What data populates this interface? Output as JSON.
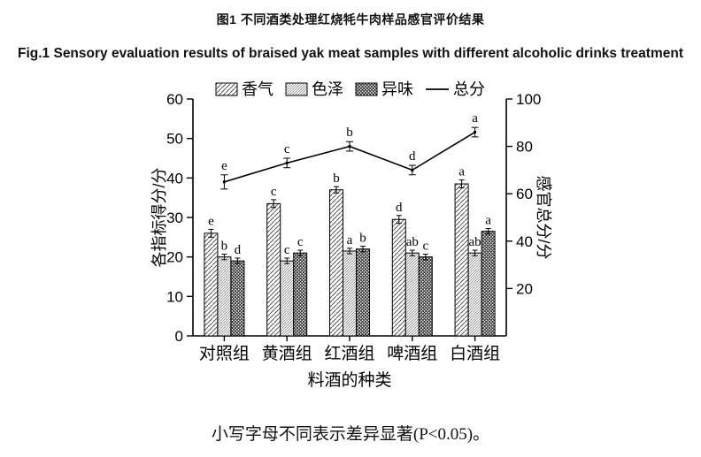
{
  "title_cn": "图1 不同酒类处理红烧牦牛肉样品感官评价结果",
  "title_en": "Fig.1 Sensory evaluation results of braised yak meat samples with different alcoholic drinks treatment",
  "footer_note": "小写字母不同表示差异显著(P<0.05)。",
  "chart_data": {
    "type": "bar",
    "title": "",
    "categories": [
      "对照组",
      "黄酒组",
      "红酒组",
      "啤酒组",
      "白酒组"
    ],
    "xlabel": "料酒的种类",
    "ylabel_left": "各指标得分/分",
    "ylabel_right": "感官总分/分",
    "ylim_left": [
      0,
      60
    ],
    "yticks_left": [
      0,
      10,
      20,
      30,
      40,
      50,
      60
    ],
    "ylim_right": [
      0,
      100
    ],
    "yticks_right": [
      20,
      40,
      60,
      80,
      100
    ],
    "grid": false,
    "legend_position": "top",
    "series": [
      {
        "name": "香气",
        "type": "bar",
        "pattern": "diag-wide",
        "values": [
          26,
          33.5,
          37,
          29.5,
          38.5
        ],
        "errors": [
          1,
          1,
          0.8,
          1,
          1
        ],
        "letters": [
          "e",
          "c",
          "b",
          "d",
          "a"
        ]
      },
      {
        "name": "色泽",
        "type": "bar",
        "pattern": "diag-fine",
        "values": [
          20,
          19,
          21.5,
          21,
          21
        ],
        "errors": [
          0.7,
          0.7,
          0.7,
          0.7,
          0.7
        ],
        "letters": [
          "b",
          "c",
          "a",
          "ab",
          "ab"
        ]
      },
      {
        "name": "异味",
        "type": "bar",
        "pattern": "dense-cross",
        "values": [
          19,
          21,
          22,
          20,
          26.5
        ],
        "errors": [
          0.7,
          0.7,
          0.7,
          0.7,
          0.7
        ],
        "letters": [
          "d",
          "c",
          "b",
          "c",
          "a"
        ]
      },
      {
        "name": "总分",
        "type": "line",
        "axis": "right",
        "values": [
          65,
          73,
          80,
          70,
          86
        ],
        "errors": [
          3,
          2,
          2,
          2,
          2
        ],
        "letters": [
          "e",
          "c",
          "b",
          "d",
          "a"
        ]
      }
    ],
    "colors": {
      "ink": "#000000",
      "hatch_light": "#555555",
      "hatch_fine": "#8a8a8a",
      "hatch_dense": "#222222"
    }
  }
}
